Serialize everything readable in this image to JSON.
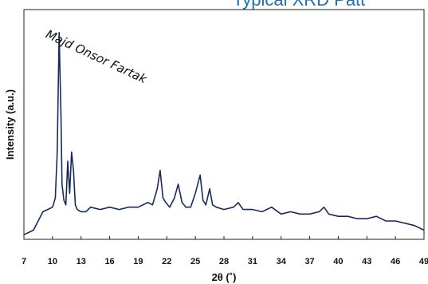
{
  "banner_text": "Typical XRD Patt",
  "chart_data": {
    "type": "line",
    "title": "",
    "xlabel": "2θ (˚)",
    "ylabel": "Intensity (a.u.)",
    "xlim": [
      7,
      49
    ],
    "ylim": [
      0,
      100
    ],
    "x_ticks": [
      7,
      10,
      13,
      16,
      19,
      22,
      25,
      28,
      31,
      34,
      37,
      40,
      43,
      46,
      49
    ],
    "y_ticks_visible": false,
    "grid": false,
    "line_color": "#1b2a5e",
    "annotations": [
      {
        "text": "Majd Onsor Fartak",
        "x": 9.2,
        "y": 88,
        "rotation_deg": 25
      }
    ],
    "series": [
      {
        "x": [
          7.0,
          7.5,
          8.0,
          8.5,
          9.0,
          9.5,
          10.0,
          10.3,
          10.5,
          10.7,
          10.9,
          11.0,
          11.2,
          11.4,
          11.6,
          11.8,
          12.0,
          12.2,
          12.4,
          12.6,
          13.0,
          13.5,
          14.0,
          15.0,
          16.0,
          17.0,
          18.0,
          19.0,
          20.0,
          20.5,
          21.0,
          21.3,
          21.6,
          21.9,
          22.3,
          22.8,
          23.2,
          23.6,
          24.0,
          24.5,
          25.0,
          25.5,
          25.8,
          26.1,
          26.5,
          26.8,
          27.2,
          28.0,
          29.0,
          29.5,
          30.0,
          31.0,
          32.0,
          33.0,
          34.0,
          35.0,
          36.0,
          37.0,
          38.0,
          38.5,
          39.0,
          40.0,
          41.0,
          42.0,
          43.0,
          44.0,
          45.0,
          46.0,
          47.0,
          48.0,
          49.0
        ],
        "y": [
          2,
          3,
          4,
          8,
          12,
          13,
          14,
          18,
          38,
          90,
          52,
          24,
          17,
          15,
          34,
          20,
          38,
          30,
          15,
          13,
          12,
          12,
          14,
          13,
          14,
          13,
          14,
          14,
          16,
          15,
          22,
          30,
          18,
          16,
          14,
          18,
          24,
          16,
          14,
          14,
          20,
          28,
          17,
          15,
          22,
          15,
          14,
          13,
          14,
          16,
          13,
          13,
          12,
          14,
          11,
          12,
          11,
          11,
          12,
          14,
          11,
          10,
          10,
          9,
          9,
          10,
          8,
          8,
          7,
          6,
          4
        ]
      }
    ]
  }
}
